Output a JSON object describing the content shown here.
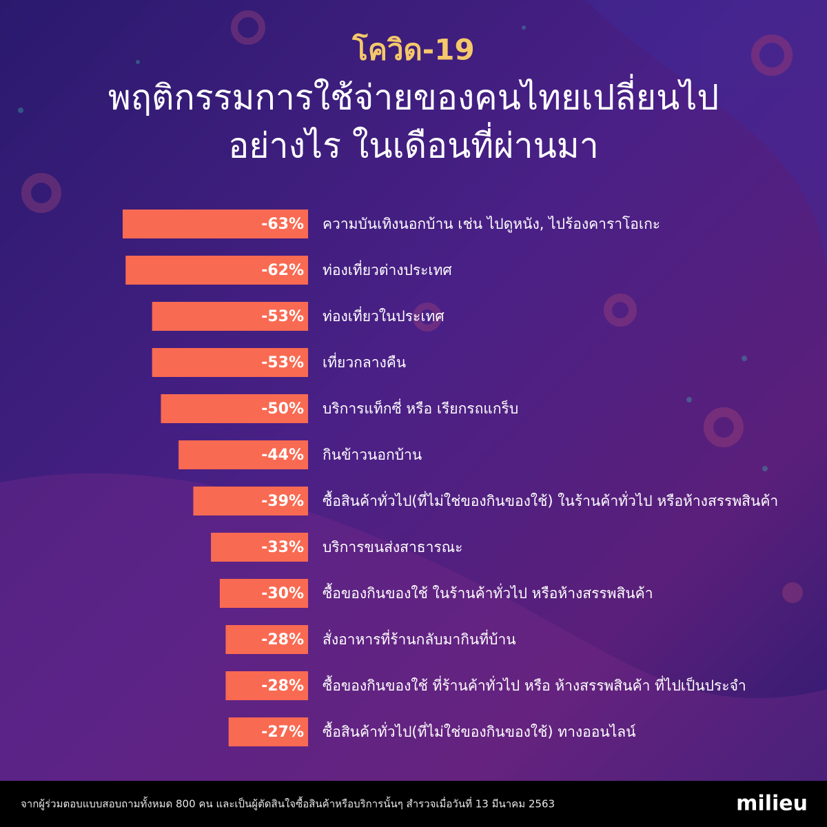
{
  "chart_data": {
    "type": "bar",
    "orientation": "horizontal",
    "title": "โควิด-19",
    "subtitle": [
      "พฤติกรรมการใช้จ่ายของคนไทยเปลี่ยนไป",
      "อย่างไร ในเดือนที่ผ่านมา"
    ],
    "categories": [
      "ความบันเทิงนอกบ้าน เช่น ไปดูหนัง, ไปร้องคาราโอเกะ",
      "ท่องเที่ยวต่างประเทศ",
      "ท่องเที่ยวในประเทศ",
      "เที่ยวกลางคืน",
      "บริการแท็กซี่ หรือ เรียกรถแกร็บ",
      "กินข้าวนอกบ้าน",
      "ซื้อสินค้าทั่วไป(ที่ไม่ใช่ของกินของใช้) ในร้านค้าทั่วไป หรือห้างสรรพสินค้า",
      "บริการขนส่งสาธารณะ",
      "ซื้อของกินของใช้ ในร้านค้าทั่วไป หรือห้างสรรพสินค้า",
      "สั่งอาหารที่ร้านกลับมากินที่บ้าน",
      "ซื้อของกินของใช้ ที่ร้านค้าทั่วไป หรือ ห้างสรรพสินค้า ที่ไปเป็นประจำ",
      "ซื้อสินค้าทั่วไป(ที่ไม่ใช่ของกินของใช้) ทางออนไลน์"
    ],
    "values": [
      -63,
      -62,
      -53,
      -53,
      -50,
      -44,
      -39,
      -33,
      -30,
      -28,
      -28,
      -27
    ],
    "value_labels": [
      "-63%",
      "-62%",
      "-53%",
      "-53%",
      "-50%",
      "-44%",
      "-39%",
      "-33%",
      "-30%",
      "-28%",
      "-28%",
      "-27%"
    ],
    "color": "#f96a52"
  },
  "footer": {
    "note": "จากผู้ร่วมตอบแบบสอบถามทั้งหมด 800 คน และเป็นผู้ตัดสินใจซื้อสินค้าหรือบริการนั้นๆ สำรวจเมื่อวันที่ 13 มีนาคม 2563",
    "brand": "milieu"
  }
}
